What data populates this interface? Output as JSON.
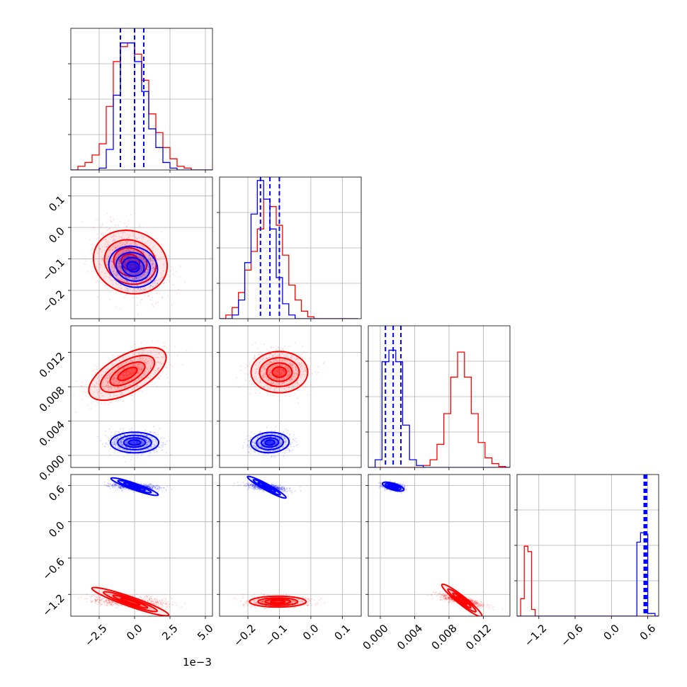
{
  "chart_data": {
    "type": "corner",
    "parameters": 4,
    "grid": true,
    "colors": {
      "series_a": "#ff0000",
      "series_b": "#0000ff"
    },
    "series": [
      {
        "color": "#ff0000"
      },
      {
        "color": "#0000ff"
      }
    ],
    "axes": [
      {
        "lim": [
          -0.0045,
          0.0055
        ],
        "ticks": [
          -0.0025,
          0.0,
          0.0025,
          0.005
        ],
        "tick_labels": [
          "−2.5",
          "0.0",
          "2.5",
          "5.0"
        ],
        "offset_label": "1e−3"
      },
      {
        "lim": [
          -0.29,
          0.16
        ],
        "ticks": [
          -0.2,
          -0.1,
          0.0,
          0.1
        ],
        "tick_labels": [
          "−0.2",
          "−0.1",
          "0.0",
          "0.1"
        ]
      },
      {
        "lim": [
          -0.0014,
          0.0151
        ],
        "ticks": [
          0.0,
          0.004,
          0.008,
          0.012
        ],
        "tick_labels": [
          "0.000",
          "0.004",
          "0.008",
          "0.012"
        ]
      },
      {
        "lim": [
          -1.56,
          0.78
        ],
        "ticks": [
          -1.2,
          -0.6,
          0.0,
          0.6
        ],
        "tick_labels": [
          "−1.2",
          "−0.6",
          "0.0",
          "0.6"
        ]
      }
    ],
    "histograms": [
      {
        "edges": [
          -0.0045,
          -0.004,
          -0.0035,
          -0.003,
          -0.0025,
          -0.002,
          -0.0015,
          -0.001,
          -0.0005,
          0.0,
          0.0005,
          0.001,
          0.0015,
          0.002,
          0.0025,
          0.003,
          0.0035,
          0.004,
          0.0045,
          0.005,
          0.0055
        ],
        "ymax": 0.36,
        "red": [
          0,
          0.01,
          0.02,
          0.04,
          0.07,
          0.17,
          0.29,
          0.33,
          0.34,
          0.31,
          0.24,
          0.15,
          0.1,
          0.06,
          0.03,
          0.01,
          0.005,
          0,
          0,
          0
        ],
        "blue": [
          0,
          0,
          0,
          0,
          0.005,
          0.055,
          0.2,
          0.34,
          0.34,
          0.29,
          0.21,
          0.11,
          0.06,
          0.02,
          0.005,
          0,
          0,
          0,
          0,
          0
        ],
        "quantile_lines": [
          -0.001,
          0.0,
          0.00065
        ]
      },
      {
        "edges": [
          -0.29,
          -0.27,
          -0.25,
          -0.23,
          -0.21,
          -0.19,
          -0.17,
          -0.15,
          -0.13,
          -0.11,
          -0.09,
          -0.07,
          -0.05,
          -0.03,
          -0.01,
          0.01,
          0.03,
          0.05,
          0.07,
          0.09,
          0.11,
          0.13,
          0.15
        ],
        "ymax": 0.36,
        "red": [
          0,
          0.01,
          0.03,
          0.07,
          0.13,
          0.18,
          0.24,
          0.32,
          0.3,
          0.25,
          0.17,
          0.09,
          0.05,
          0.02,
          0.005,
          0,
          0,
          0,
          0,
          0,
          0,
          0
        ],
        "blue": [
          0,
          0,
          0.01,
          0.05,
          0.15,
          0.28,
          0.37,
          0.32,
          0.24,
          0.11,
          0.04,
          0.01,
          0,
          0,
          0,
          0,
          0,
          0,
          0,
          0,
          0,
          0
        ],
        "quantile_lines": [
          -0.16,
          -0.13,
          -0.1
        ]
      },
      {
        "edges": [
          -0.0014,
          -0.0006,
          0.0002,
          0.001,
          0.0018,
          0.0026,
          0.0034,
          0.0042,
          0.005,
          0.0058,
          0.0066,
          0.0074,
          0.0082,
          0.009,
          0.0098,
          0.0106,
          0.0114,
          0.0122,
          0.013,
          0.0138,
          0.0146,
          0.0154
        ],
        "ymax": 0.7,
        "red": [
          0,
          0,
          0,
          0,
          0,
          0,
          0,
          0,
          0.01,
          0.04,
          0.12,
          0.28,
          0.47,
          0.6,
          0.47,
          0.28,
          0.13,
          0.05,
          0.02,
          0.005,
          0
        ],
        "blue": [
          0,
          0.04,
          0.55,
          0.61,
          0.55,
          0.22,
          0.04,
          0.01,
          0,
          0,
          0,
          0,
          0,
          0,
          0,
          0,
          0,
          0,
          0,
          0,
          0
        ],
        "quantile_lines": [
          0.0006,
          0.0015,
          0.0024
        ]
      },
      {
        "edges": [
          -1.56,
          -1.5,
          -1.44,
          -1.38,
          -1.32,
          -1.26,
          -1.2,
          -1.14,
          -1.08,
          0.42,
          0.48,
          0.54,
          0.6,
          0.66,
          0.72,
          0.78
        ],
        "ymax": 1.0,
        "red": [
          0,
          0.13,
          0.52,
          0.48,
          0.05,
          0,
          0,
          0,
          0,
          0,
          0,
          0,
          0,
          0,
          0
        ],
        "blue": [
          0,
          0,
          0,
          0,
          0,
          0,
          0,
          0,
          0,
          0.55,
          0.62,
          0.61,
          0.02,
          0.02,
          0
        ],
        "quantile_lines": [
          0.54,
          0.56,
          0.58
        ]
      }
    ],
    "scatter_clusters": {
      "1,0": {
        "red": {
          "center": [
            -0.0003,
            -0.11
          ],
          "spread": [
            0.0012,
            0.055
          ],
          "corr": -0.35
        },
        "blue": {
          "center": [
            -0.0001,
            -0.125
          ],
          "spread": [
            0.0008,
            0.035
          ],
          "corr": -0.3
        }
      },
      "2,0": {
        "red": {
          "center": [
            -0.0005,
            0.0095
          ],
          "spread": [
            0.0013,
            0.0013
          ],
          "corr": 0.55
        },
        "blue": {
          "center": [
            0.0,
            0.0015
          ],
          "spread": [
            0.00085,
            0.0006
          ],
          "corr": 0.0
        }
      },
      "2,1": {
        "red": {
          "center": [
            -0.1,
            0.0097
          ],
          "spread": [
            0.045,
            0.0012
          ],
          "corr": 0.0
        },
        "blue": {
          "center": [
            -0.13,
            0.0015
          ],
          "spread": [
            0.03,
            0.0006
          ],
          "corr": 0.05
        }
      },
      "3,0": {
        "red": {
          "center": [
            -0.0003,
            -1.32
          ],
          "spread": [
            0.0013,
            0.045
          ],
          "corr": -0.35
        },
        "blue": {
          "center": [
            0.0,
            0.58
          ],
          "spread": [
            0.0008,
            0.03
          ],
          "corr": -0.35
        }
      },
      "3,1": {
        "red": {
          "center": [
            -0.105,
            -1.32
          ],
          "spread": [
            0.045,
            0.045
          ],
          "corr": 0.0
        },
        "blue": {
          "center": [
            -0.14,
            0.57
          ],
          "spread": [
            0.03,
            0.03
          ],
          "corr": -0.55
        }
      },
      "3,2": {
        "red": {
          "center": [
            0.0095,
            -1.3
          ],
          "spread": [
            0.0012,
            0.045
          ],
          "corr": -0.8
        },
        "blue": {
          "center": [
            0.0015,
            0.58
          ],
          "spread": [
            0.0006,
            0.03
          ],
          "corr": -0.3
        }
      }
    }
  }
}
